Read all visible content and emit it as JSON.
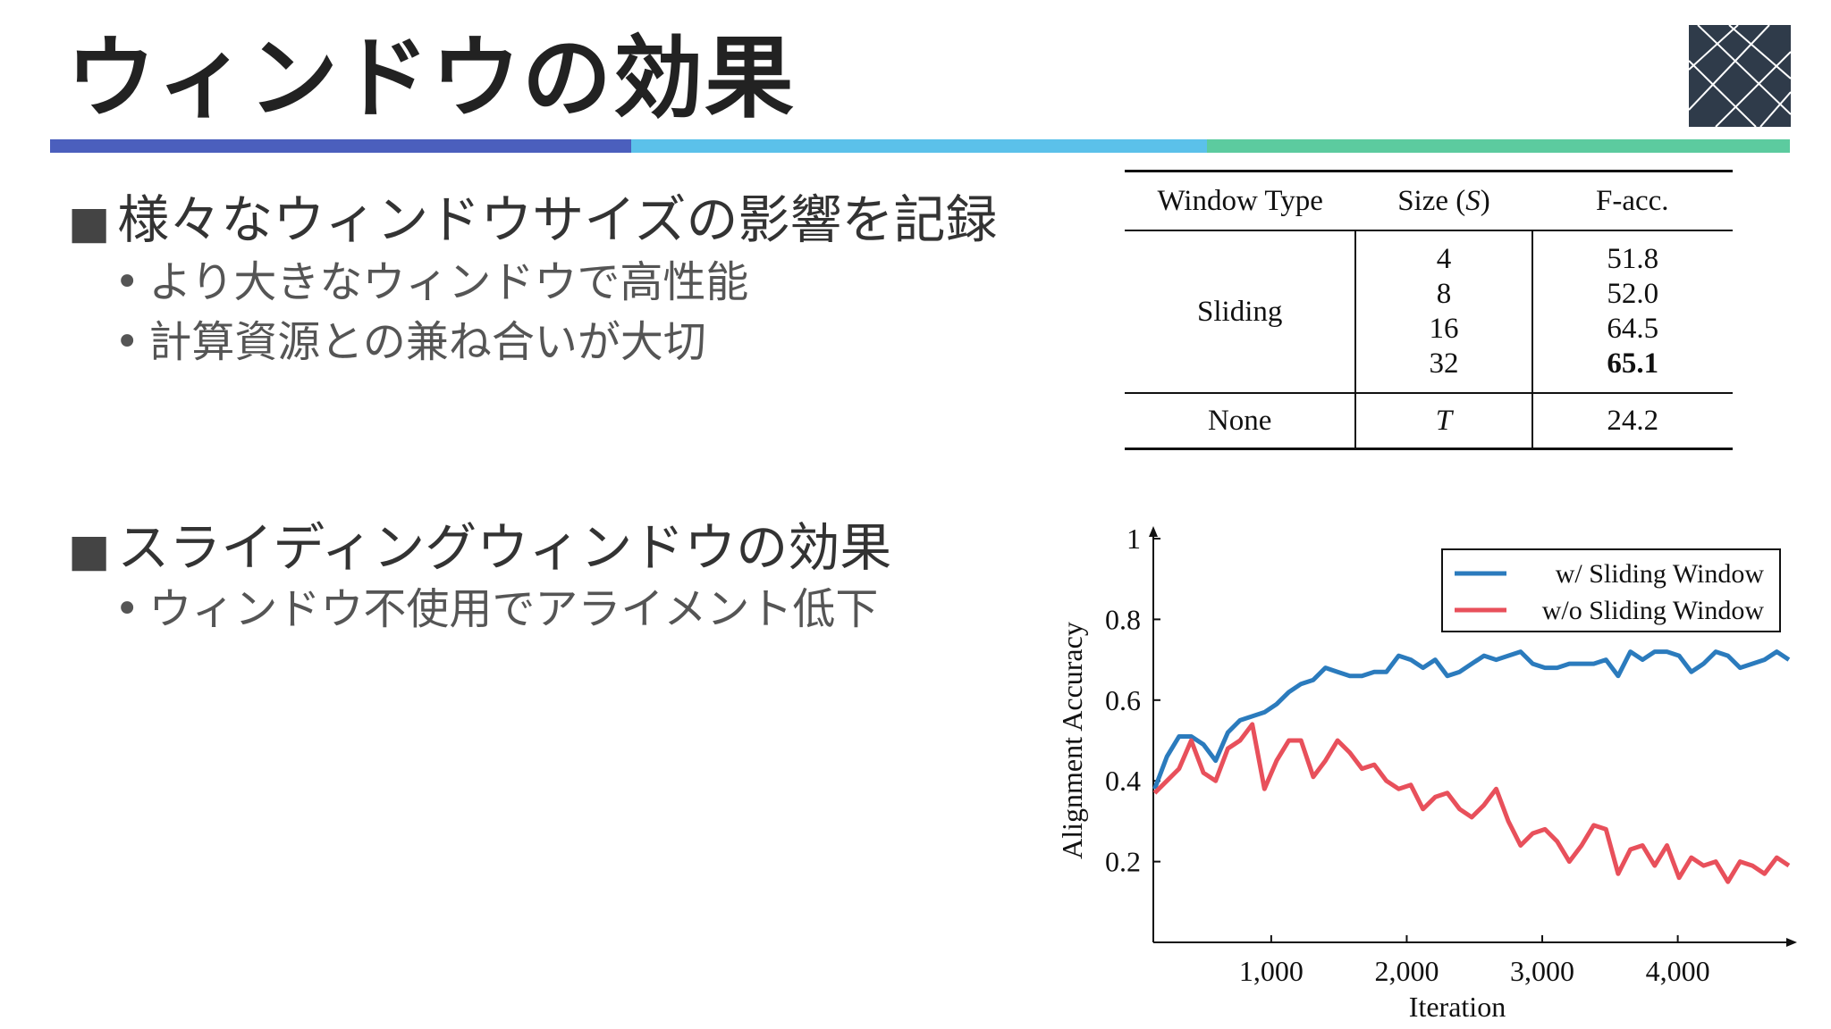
{
  "slide": {
    "title": "ウィンドウの効果"
  },
  "bullets": [
    {
      "marker": "■",
      "text": "様々なウィンドウサイズの影響を記録",
      "subs": [
        {
          "marker": "•",
          "text": "より大きなウィンドウで高性能"
        },
        {
          "marker": "•",
          "text": "計算資源との兼ね合いが大切"
        }
      ]
    },
    {
      "marker": "■",
      "text": "スライディングウィンドウの効果",
      "subs": [
        {
          "marker": "•",
          "text": "ウィンドウ不使用でアライメント低下"
        }
      ]
    }
  ],
  "table": {
    "headers": {
      "type": "Window Type",
      "size_prefix": "Size (",
      "size_var": "S",
      "size_suffix": ")",
      "facc": "F-acc."
    },
    "sliding_label": "Sliding",
    "sliding_sizes": [
      "4",
      "8",
      "16",
      "32"
    ],
    "sliding_facc": [
      "51.8",
      "52.0",
      "64.5",
      "65.1"
    ],
    "best_value": "65.1",
    "none_label": "None",
    "none_size": "T",
    "none_facc": "24.2"
  },
  "chart_data": {
    "type": "line",
    "xlabel": "Iteration",
    "ylabel": "Alignment Accuracy",
    "xlim": [
      130,
      4880
    ],
    "ylim": [
      0,
      1
    ],
    "xticks": [
      1000,
      2000,
      3000,
      4000
    ],
    "xtick_labels": [
      "1,000",
      "2,000",
      "3,000",
      "4,000"
    ],
    "yticks": [
      0.2,
      0.4,
      0.6,
      0.8,
      1
    ],
    "ytick_labels": [
      "0.2",
      "0.4",
      "0.6",
      "0.8",
      "1"
    ],
    "grid": false,
    "legend_position": "top-right",
    "x": [
      140,
      230,
      320,
      410,
      500,
      590,
      680,
      770,
      860,
      950,
      1040,
      1130,
      1220,
      1310,
      1400,
      1490,
      1580,
      1670,
      1760,
      1850,
      1940,
      2030,
      2120,
      2210,
      2300,
      2390,
      2480,
      2570,
      2660,
      2750,
      2840,
      2930,
      3020,
      3110,
      3200,
      3290,
      3380,
      3470,
      3560,
      3650,
      3740,
      3830,
      3920,
      4010,
      4100,
      4190,
      4280,
      4370,
      4460,
      4550,
      4640,
      4730,
      4820
    ],
    "series": [
      {
        "name": "w/ Sliding Window",
        "color": "#2b7bbd",
        "values": [
          0.38,
          0.46,
          0.51,
          0.51,
          0.49,
          0.45,
          0.52,
          0.55,
          0.56,
          0.57,
          0.59,
          0.62,
          0.64,
          0.65,
          0.68,
          0.67,
          0.66,
          0.66,
          0.67,
          0.67,
          0.71,
          0.7,
          0.68,
          0.7,
          0.66,
          0.67,
          0.69,
          0.71,
          0.7,
          0.71,
          0.72,
          0.69,
          0.68,
          0.68,
          0.69,
          0.69,
          0.69,
          0.7,
          0.66,
          0.72,
          0.7,
          0.72,
          0.72,
          0.71,
          0.67,
          0.69,
          0.72,
          0.71,
          0.68,
          0.69,
          0.7,
          0.72,
          0.7
        ]
      },
      {
        "name": "w/o Sliding Window",
        "color": "#e8505b",
        "values": [
          0.37,
          0.4,
          0.43,
          0.5,
          0.42,
          0.4,
          0.48,
          0.5,
          0.54,
          0.38,
          0.45,
          0.5,
          0.5,
          0.41,
          0.45,
          0.5,
          0.47,
          0.43,
          0.44,
          0.4,
          0.38,
          0.39,
          0.33,
          0.36,
          0.37,
          0.33,
          0.31,
          0.34,
          0.38,
          0.3,
          0.24,
          0.27,
          0.28,
          0.25,
          0.2,
          0.24,
          0.29,
          0.28,
          0.17,
          0.23,
          0.24,
          0.19,
          0.24,
          0.16,
          0.21,
          0.19,
          0.2,
          0.15,
          0.2,
          0.19,
          0.17,
          0.21,
          0.19
        ]
      }
    ]
  }
}
